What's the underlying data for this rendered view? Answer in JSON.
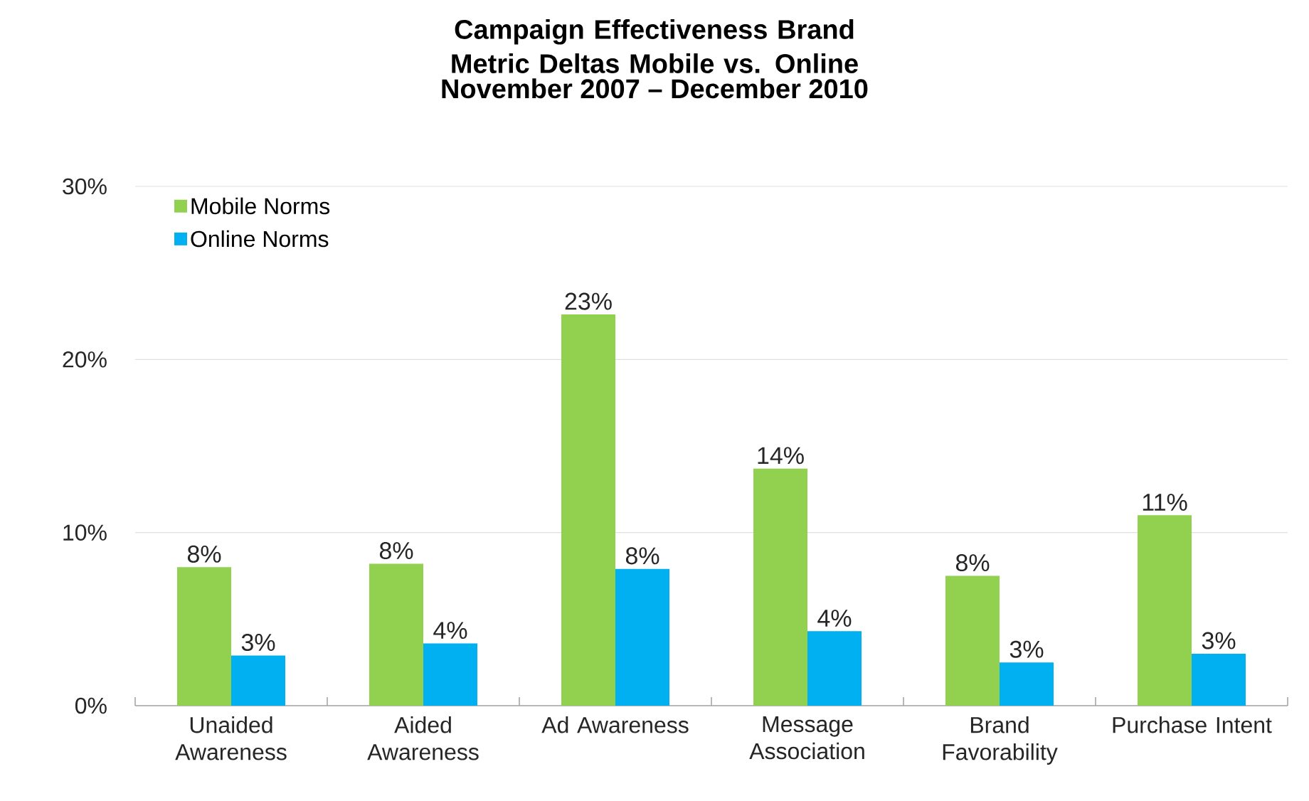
{
  "chart_data": {
    "type": "bar",
    "title": "Campaign Effectiveness Brand Metric Deltas Mobile vs. Online",
    "subtitle": "November 2007 – December 2010",
    "categories": [
      "Unaided Awareness",
      "Aided Awareness",
      "Ad Awareness",
      "Message Association",
      "Brand Favorability",
      "Purchase Intent"
    ],
    "series": [
      {
        "name": "Mobile Norms",
        "color": "#92d050",
        "values": [
          8.0,
          8.2,
          22.6,
          13.7,
          7.5,
          11.0
        ],
        "value_labels": [
          "8%",
          "8%",
          "23%",
          "14%",
          "8%",
          "11%"
        ]
      },
      {
        "name": "Online Norms",
        "color": "#00b0f0",
        "values": [
          2.9,
          3.6,
          7.9,
          4.3,
          2.5,
          3.0
        ],
        "value_labels": [
          "3%",
          "4%",
          "8%",
          "4%",
          "3%",
          "3%"
        ]
      }
    ],
    "ylim": [
      0,
      30
    ],
    "yticks": [
      {
        "value": 0,
        "label": "0%"
      },
      {
        "value": 10,
        "label": "10%"
      },
      {
        "value": 20,
        "label": "20%"
      },
      {
        "value": 30,
        "label": "30%"
      }
    ],
    "grid": "y",
    "legend": "top left"
  }
}
